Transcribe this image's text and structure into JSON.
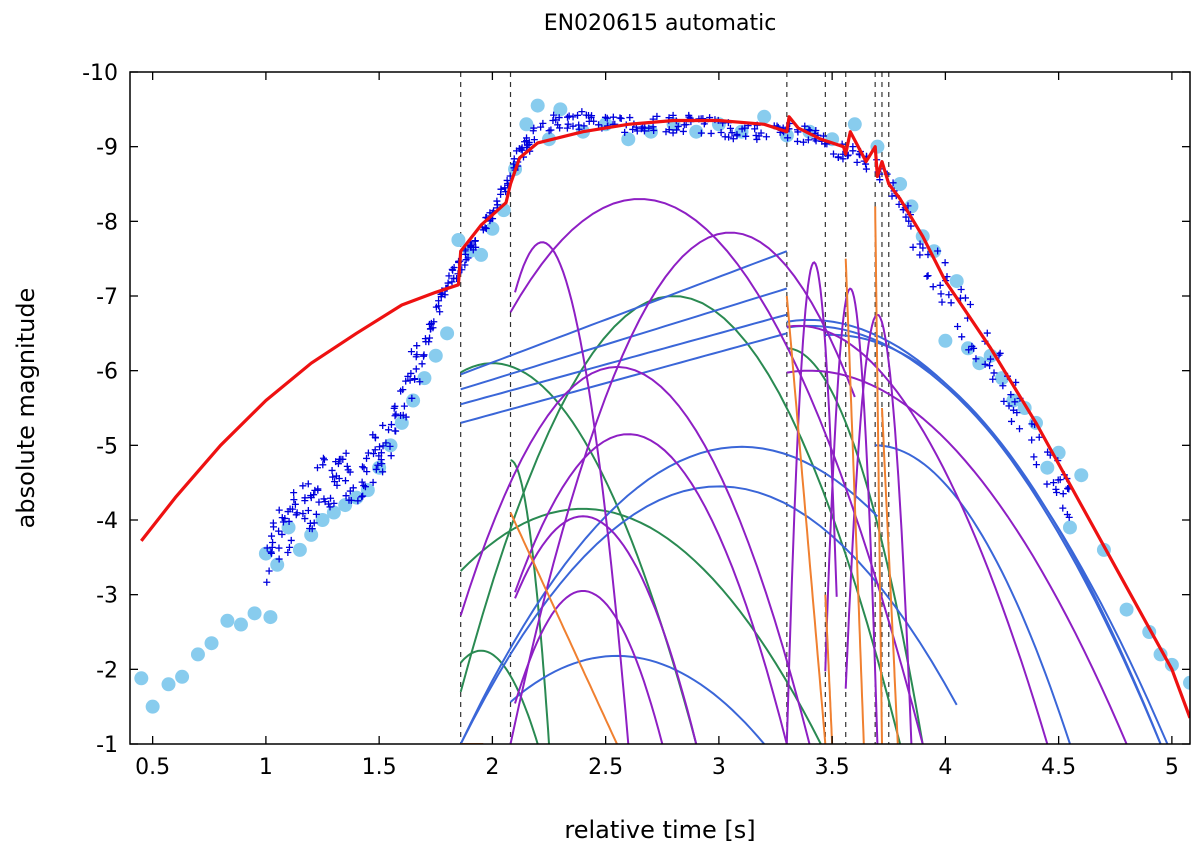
{
  "chart_data": {
    "type": "scatter",
    "title": "EN020615 automatic",
    "xlabel": "relative time [s]",
    "ylabel": "absolute magnitude",
    "xlim": [
      0.4,
      5.08
    ],
    "ylim": [
      -1,
      -10
    ],
    "y_inverted": true,
    "grid": false,
    "legend": "none",
    "x_ticks": [
      0.5,
      1,
      1.5,
      2,
      2.5,
      3,
      3.5,
      4,
      4.5,
      5
    ],
    "x_tick_labels": [
      "0.5",
      "1",
      "1.5",
      "2",
      "2.5",
      "3",
      "3.5",
      "4",
      "4.5",
      "5"
    ],
    "y_ticks": [
      -1,
      -2,
      -3,
      -4,
      -5,
      -6,
      -7,
      -8,
      -9,
      -10
    ],
    "y_tick_labels": [
      "-1",
      "-2",
      "-3",
      "-4",
      "-5",
      "-6",
      "-7",
      "-8",
      "-9",
      "-10"
    ],
    "fragmentation_times": [
      1.86,
      2.08,
      3.3,
      3.47,
      3.56,
      3.69,
      3.72,
      3.75
    ],
    "series": [
      {
        "role": "model_total",
        "color": "#ee1111",
        "style": "line",
        "x": [
          0.45,
          0.6,
          0.8,
          1.0,
          1.2,
          1.4,
          1.6,
          1.75,
          1.85,
          1.86,
          1.95,
          2.06,
          2.08,
          2.12,
          2.2,
          2.4,
          2.6,
          2.8,
          3.0,
          3.2,
          3.3,
          3.31,
          3.35,
          3.45,
          3.55,
          3.56,
          3.58,
          3.65,
          3.69,
          3.7,
          3.72,
          3.75,
          3.8,
          3.9,
          4.0,
          4.2,
          4.4,
          4.6,
          4.8,
          5.0,
          5.08
        ],
        "y": [
          -3.72,
          -4.3,
          -5.0,
          -5.6,
          -6.1,
          -6.5,
          -6.88,
          -7.05,
          -7.15,
          -7.6,
          -7.95,
          -8.25,
          -8.5,
          -8.85,
          -9.05,
          -9.2,
          -9.3,
          -9.35,
          -9.35,
          -9.3,
          -9.2,
          -9.4,
          -9.25,
          -9.1,
          -9.0,
          -8.9,
          -9.2,
          -8.8,
          -9.0,
          -8.6,
          -8.8,
          -8.5,
          -8.3,
          -7.8,
          -7.2,
          -6.3,
          -5.3,
          -4.2,
          -3.1,
          -2.0,
          -1.35
        ]
      },
      {
        "role": "observed_dense",
        "color": "#0000dd",
        "style": "plus",
        "x": [
          1.0,
          1.05,
          1.1,
          1.15,
          1.2,
          1.25,
          1.3,
          1.35,
          1.4,
          1.45,
          1.5,
          1.55,
          1.6,
          1.65,
          1.7,
          1.75,
          1.8,
          1.85,
          1.9,
          1.95,
          2.0,
          2.05,
          2.1,
          2.15,
          2.2,
          2.3,
          2.4,
          2.5,
          2.6,
          2.7,
          2.8,
          2.9,
          3.0,
          3.1,
          3.2,
          3.3,
          3.4,
          3.5,
          3.6,
          3.7,
          3.8,
          3.9,
          4.0,
          4.1,
          4.2,
          4.3,
          4.4,
          4.5,
          4.55
        ],
        "y": [
          -3.4,
          -3.8,
          -3.9,
          -4.3,
          -4.2,
          -4.5,
          -4.4,
          -4.6,
          -4.5,
          -4.8,
          -4.9,
          -5.0,
          -5.5,
          -6.0,
          -6.3,
          -6.8,
          -7.1,
          -7.4,
          -7.6,
          -7.9,
          -8.1,
          -8.4,
          -8.8,
          -9.0,
          -9.2,
          -9.35,
          -9.35,
          -9.3,
          -9.3,
          -9.3,
          -9.3,
          -9.3,
          -9.25,
          -9.2,
          -9.2,
          -9.2,
          -9.15,
          -9.0,
          -8.9,
          -8.7,
          -8.3,
          -7.7,
          -7.1,
          -6.6,
          -6.1,
          -5.6,
          -5.0,
          -4.5,
          -4.2
        ]
      },
      {
        "role": "observed_sparse",
        "color": "#88ccee",
        "style": "circle",
        "x": [
          0.45,
          0.5,
          0.57,
          0.63,
          0.7,
          0.76,
          0.83,
          0.89,
          0.95,
          1.0,
          1.02,
          1.05,
          1.1,
          1.15,
          1.2,
          1.25,
          1.3,
          1.35,
          1.4,
          1.45,
          1.5,
          1.55,
          1.6,
          1.65,
          1.7,
          1.75,
          1.8,
          1.85,
          1.9,
          1.95,
          2.0,
          2.05,
          2.1,
          2.15,
          2.2,
          2.25,
          2.3,
          2.4,
          2.5,
          2.6,
          2.7,
          2.8,
          2.9,
          3.0,
          3.1,
          3.2,
          3.3,
          3.4,
          3.5,
          3.6,
          3.7,
          3.8,
          3.85,
          3.9,
          3.95,
          4.0,
          4.05,
          4.1,
          4.15,
          4.2,
          4.25,
          4.3,
          4.35,
          4.4,
          4.45,
          4.5,
          4.55,
          4.6,
          4.7,
          4.8,
          4.9,
          4.95,
          5.0,
          5.08
        ],
        "y": [
          -1.88,
          -1.5,
          -1.8,
          -1.9,
          -2.2,
          -2.35,
          -2.65,
          -2.6,
          -2.75,
          -3.55,
          -2.7,
          -3.4,
          -3.9,
          -3.6,
          -3.8,
          -4.0,
          -4.1,
          -4.2,
          -4.3,
          -4.4,
          -4.7,
          -5.0,
          -5.3,
          -5.6,
          -5.9,
          -6.2,
          -6.5,
          -7.75,
          -7.6,
          -7.55,
          -7.9,
          -8.15,
          -8.7,
          -9.3,
          -9.55,
          -9.1,
          -9.5,
          -9.2,
          -9.3,
          -9.1,
          -9.2,
          -9.3,
          -9.2,
          -9.3,
          -9.2,
          -9.4,
          -9.15,
          -9.2,
          -9.1,
          -9.3,
          -9.0,
          -8.5,
          -8.2,
          -7.8,
          -7.6,
          -6.4,
          -7.2,
          -6.3,
          -6.1,
          -6.2,
          -5.9,
          -5.6,
          -5.5,
          -5.3,
          -4.7,
          -4.9,
          -3.9,
          -4.6,
          -3.6,
          -2.8,
          -2.5,
          -2.2,
          -2.06,
          -1.82
        ]
      },
      {
        "role": "fragments_purple",
        "color": "#8e1fc4",
        "style": "line",
        "curves": [
          {
            "x0": 2.08,
            "x1": 3.9,
            "peak_x": 2.65,
            "peak_y": -8.3
          },
          {
            "x0": 2.08,
            "x1": 3.6,
            "peak_x": 3.05,
            "peak_y": -7.85
          },
          {
            "x0": 2.1,
            "x1": 2.6,
            "peak_x": 2.22,
            "peak_y": -7.72
          },
          {
            "x0": 1.86,
            "x1": 3.4,
            "peak_x": 2.55,
            "peak_y": -6.05
          },
          {
            "x0": 2.1,
            "x1": 3.3,
            "peak_x": 2.6,
            "peak_y": -5.15
          },
          {
            "x0": 2.1,
            "x1": 2.9,
            "peak_x": 2.4,
            "peak_y": -4.05
          },
          {
            "x0": 2.1,
            "x1": 2.75,
            "peak_x": 2.4,
            "peak_y": -3.05
          },
          {
            "x0": 3.3,
            "x1": 3.52,
            "peak_x": 3.42,
            "peak_y": -7.45
          },
          {
            "x0": 3.47,
            "x1": 3.7,
            "peak_x": 3.58,
            "peak_y": -7.1
          },
          {
            "x0": 3.56,
            "x1": 3.85,
            "peak_x": 3.7,
            "peak_y": -6.75
          },
          {
            "x0": 3.3,
            "x1": 4.45,
            "peak_x": 3.35,
            "peak_y": -6.6
          },
          {
            "x0": 3.3,
            "x1": 4.8,
            "peak_x": 3.4,
            "peak_y": -6.0
          }
        ]
      },
      {
        "role": "fragments_blue",
        "color": "#3a66d8",
        "style": "line",
        "curves": [
          {
            "x0": 1.86,
            "x1": 3.3,
            "start_y": -5.95,
            "end_y": -7.6
          },
          {
            "x0": 1.86,
            "x1": 3.3,
            "start_y": -5.75,
            "end_y": -7.1
          },
          {
            "x0": 1.86,
            "x1": 3.3,
            "start_y": -5.55,
            "end_y": -6.75
          },
          {
            "x0": 1.86,
            "x1": 3.3,
            "start_y": -5.3,
            "end_y": -6.5
          },
          {
            "x0": 1.86,
            "x1": 3.7,
            "peak_x": 3.1,
            "peak_y": -4.98
          },
          {
            "x0": 1.86,
            "x1": 4.05,
            "peak_x": 3.0,
            "peak_y": -4.45
          },
          {
            "x0": 2.08,
            "x1": 3.2,
            "peak_x": 2.55,
            "peak_y": -2.18
          },
          {
            "x0": 3.3,
            "x1": 4.95,
            "peak_x": 3.4,
            "peak_y": -6.68
          },
          {
            "x0": 3.3,
            "x1": 4.98,
            "peak_x": 3.4,
            "peak_y": -6.6
          },
          {
            "x0": 3.47,
            "x1": 4.95,
            "peak_x": 3.5,
            "peak_y": -6.48
          },
          {
            "x0": 3.69,
            "x1": 4.55,
            "peak_x": 3.69,
            "peak_y": -5.0
          }
        ]
      },
      {
        "role": "fragments_green",
        "color": "#2a8a52",
        "style": "line",
        "curves": [
          {
            "x0": 1.86,
            "x1": 3.8,
            "peak_x": 2.8,
            "peak_y": -7.0
          },
          {
            "x0": 1.86,
            "x1": 2.9,
            "peak_x": 2.0,
            "peak_y": -6.1
          },
          {
            "x0": 1.86,
            "x1": 3.45,
            "peak_x": 2.4,
            "peak_y": -4.15
          },
          {
            "x0": 1.86,
            "x1": 2.2,
            "peak_x": 1.95,
            "peak_y": -2.25
          },
          {
            "x0": 2.08,
            "x1": 2.25,
            "peak_x": 2.08,
            "peak_y": -4.8
          },
          {
            "x0": 3.3,
            "x1": 3.9,
            "peak_x": 3.3,
            "peak_y": -6.3
          }
        ]
      },
      {
        "role": "fragments_orange",
        "color": "#f08030",
        "style": "line",
        "curves": [
          {
            "x0": 2.08,
            "x1": 2.55,
            "start_y": -4.1,
            "end_y": -1.0
          },
          {
            "x0": 1.86,
            "x1": 1.96,
            "start_y": -1.0,
            "end_y": -1.0
          },
          {
            "x0": 3.3,
            "x1": 3.47,
            "start_y": -7.0,
            "end_y": -1.0
          },
          {
            "x0": 3.47,
            "x1": 3.5,
            "start_y": -3.0,
            "end_y": -1.0
          },
          {
            "x0": 3.56,
            "x1": 3.64,
            "start_y": -7.5,
            "end_y": -1.0
          },
          {
            "x0": 3.69,
            "x1": 3.72,
            "start_y": -8.2,
            "end_y": -1.0
          },
          {
            "x0": 3.72,
            "x1": 3.79,
            "start_y": -5.5,
            "end_y": -1.0
          }
        ]
      }
    ]
  }
}
